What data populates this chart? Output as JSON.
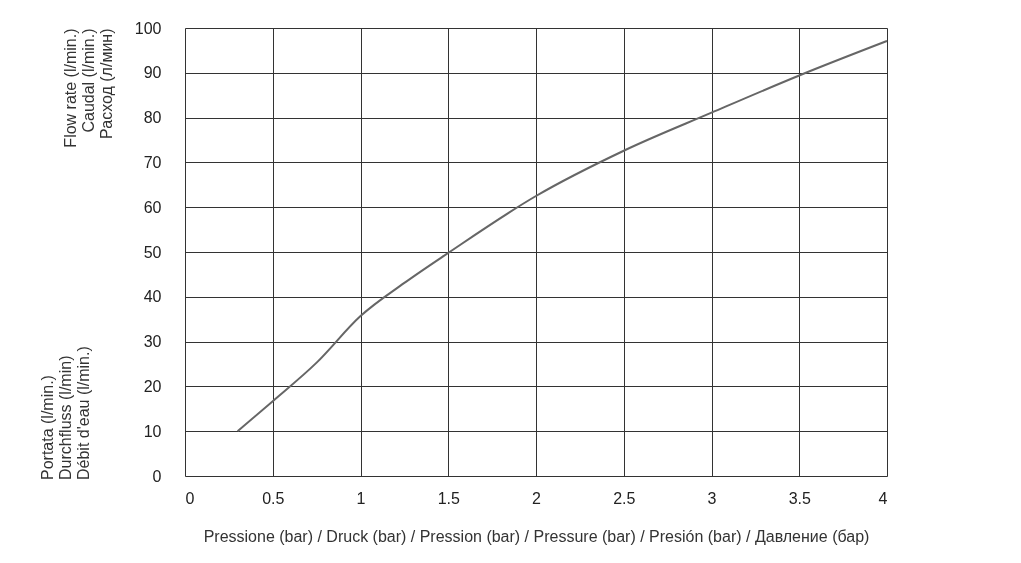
{
  "chart_data": {
    "type": "line",
    "xlabel": "Pressione (bar) / Druck (bar) / Pression (bar) / Pressure (bar) / Presión (bar) / Давление (бар)",
    "ylabel": "Flow rate (l/min.)\nCaudal (l/min.)\nРасход (л/мин)",
    "annotations": [
      "Portata (l/min.)\nDurchfluss (l/min)\nDébit d'eau (l/min.)"
    ],
    "x": [
      0.3,
      0.5,
      0.75,
      1,
      1.25,
      1.5,
      2,
      2.5,
      3,
      3.5,
      4
    ],
    "series": [
      {
        "color": "#666666",
        "values": [
          10,
          16.7,
          25.3,
          35.7,
          43.1,
          49.8,
          62.5,
          72.6,
          81.1,
          89.4,
          97.1
        ]
      }
    ],
    "xlim": [
      0,
      4
    ],
    "xticks": [
      0,
      0.5,
      1,
      1.5,
      2,
      2.5,
      3,
      3.5,
      4
    ],
    "ylim": [
      0,
      100
    ],
    "yticks": [
      0,
      10,
      20,
      30,
      40,
      50,
      60,
      70,
      80,
      90,
      100
    ],
    "grid": true,
    "marker": "none",
    "line_style": "solid"
  }
}
